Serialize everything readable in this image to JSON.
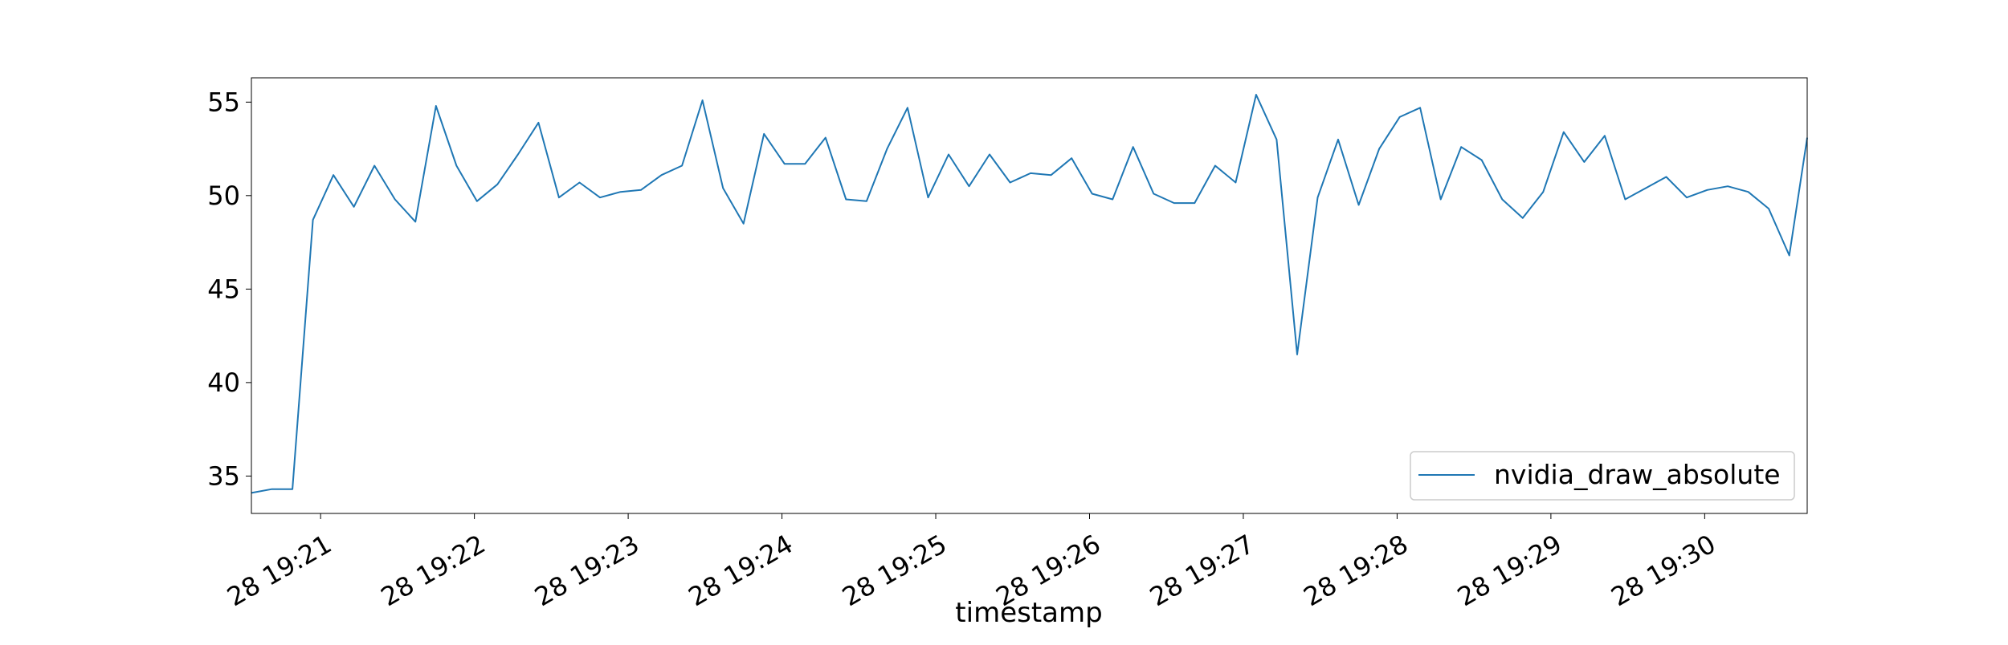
{
  "chart_data": {
    "type": "line",
    "title": "",
    "xlabel": "timestamp",
    "ylabel": "",
    "x_type": "time",
    "xlim": [
      "2023-01-28 19:20:33",
      "2023-01-28 19:30:40"
    ],
    "ylim": [
      33.0,
      56.3
    ],
    "y_ticks": [
      35,
      40,
      45,
      50,
      55
    ],
    "x_ticks": [
      {
        "value": "2023-01-28 19:21:00",
        "label": "28 19:21"
      },
      {
        "value": "2023-01-28 19:22:00",
        "label": "28 19:22"
      },
      {
        "value": "2023-01-28 19:23:00",
        "label": "28 19:23"
      },
      {
        "value": "2023-01-28 19:24:00",
        "label": "28 19:24"
      },
      {
        "value": "2023-01-28 19:25:00",
        "label": "28 19:25"
      },
      {
        "value": "2023-01-28 19:26:00",
        "label": "28 19:26"
      },
      {
        "value": "2023-01-28 19:27:00",
        "label": "28 19:27"
      },
      {
        "value": "2023-01-28 19:28:00",
        "label": "28 19:28"
      },
      {
        "value": "2023-01-28 19:29:00",
        "label": "28 19:29"
      },
      {
        "value": "2023-01-28 19:30:00",
        "label": "28 19:30"
      }
    ],
    "grid": false,
    "legend_position": "lower-right",
    "series": [
      {
        "name": "nvidia_draw_absolute",
        "color": "#1f77b4",
        "x": [
          "2023-01-28 19:20:33",
          "2023-01-28 19:20:41",
          "2023-01-28 19:20:49",
          "2023-01-28 19:20:57",
          "2023-01-28 19:21:05",
          "2023-01-28 19:21:13",
          "2023-01-28 19:21:21",
          "2023-01-28 19:21:29",
          "2023-01-28 19:21:37",
          "2023-01-28 19:21:45",
          "2023-01-28 19:21:53",
          "2023-01-28 19:22:01",
          "2023-01-28 19:22:09",
          "2023-01-28 19:22:17",
          "2023-01-28 19:22:25",
          "2023-01-28 19:22:33",
          "2023-01-28 19:22:41",
          "2023-01-28 19:22:49",
          "2023-01-28 19:22:57",
          "2023-01-28 19:23:05",
          "2023-01-28 19:23:13",
          "2023-01-28 19:23:21",
          "2023-01-28 19:23:29",
          "2023-01-28 19:23:37",
          "2023-01-28 19:23:45",
          "2023-01-28 19:23:53",
          "2023-01-28 19:24:01",
          "2023-01-28 19:24:09",
          "2023-01-28 19:24:17",
          "2023-01-28 19:24:25",
          "2023-01-28 19:24:33",
          "2023-01-28 19:24:41",
          "2023-01-28 19:24:49",
          "2023-01-28 19:24:57",
          "2023-01-28 19:25:05",
          "2023-01-28 19:25:13",
          "2023-01-28 19:25:21",
          "2023-01-28 19:25:29",
          "2023-01-28 19:25:37",
          "2023-01-28 19:25:45",
          "2023-01-28 19:25:53",
          "2023-01-28 19:26:01",
          "2023-01-28 19:26:09",
          "2023-01-28 19:26:17",
          "2023-01-28 19:26:25",
          "2023-01-28 19:26:33",
          "2023-01-28 19:26:41",
          "2023-01-28 19:26:49",
          "2023-01-28 19:26:57",
          "2023-01-28 19:27:05",
          "2023-01-28 19:27:13",
          "2023-01-28 19:27:21",
          "2023-01-28 19:27:29",
          "2023-01-28 19:27:37",
          "2023-01-28 19:27:45",
          "2023-01-28 19:27:53",
          "2023-01-28 19:28:01",
          "2023-01-28 19:28:09",
          "2023-01-28 19:28:17",
          "2023-01-28 19:28:25",
          "2023-01-28 19:28:33",
          "2023-01-28 19:28:41",
          "2023-01-28 19:28:49",
          "2023-01-28 19:28:57",
          "2023-01-28 19:29:05",
          "2023-01-28 19:29:13",
          "2023-01-28 19:29:21",
          "2023-01-28 19:29:29",
          "2023-01-28 19:29:37",
          "2023-01-28 19:29:45",
          "2023-01-28 19:29:53",
          "2023-01-28 19:30:01",
          "2023-01-28 19:30:09",
          "2023-01-28 19:30:17",
          "2023-01-28 19:30:25",
          "2023-01-28 19:30:33",
          "2023-01-28 19:30:40"
        ],
        "y": [
          34.1,
          34.3,
          34.3,
          48.7,
          51.1,
          49.4,
          51.6,
          49.8,
          48.6,
          54.8,
          51.6,
          49.7,
          50.6,
          52.2,
          53.9,
          49.9,
          50.7,
          49.9,
          50.2,
          50.3,
          51.1,
          51.6,
          55.1,
          50.4,
          48.5,
          53.3,
          51.7,
          51.7,
          53.1,
          49.8,
          49.7,
          52.5,
          54.7,
          49.9,
          52.2,
          50.5,
          52.2,
          50.7,
          51.2,
          51.1,
          52.0,
          50.1,
          49.8,
          52.6,
          50.1,
          49.6,
          49.6,
          51.6,
          50.7,
          55.4,
          53.0,
          41.5,
          49.9,
          53.0,
          49.5,
          52.5,
          54.2,
          54.7,
          49.8,
          52.6,
          51.9,
          49.8,
          48.8,
          50.2,
          53.4,
          51.8,
          53.2,
          49.8,
          50.4,
          51.0,
          49.9,
          50.3,
          50.5,
          50.2,
          49.3,
          46.8,
          53.1
        ]
      }
    ]
  }
}
